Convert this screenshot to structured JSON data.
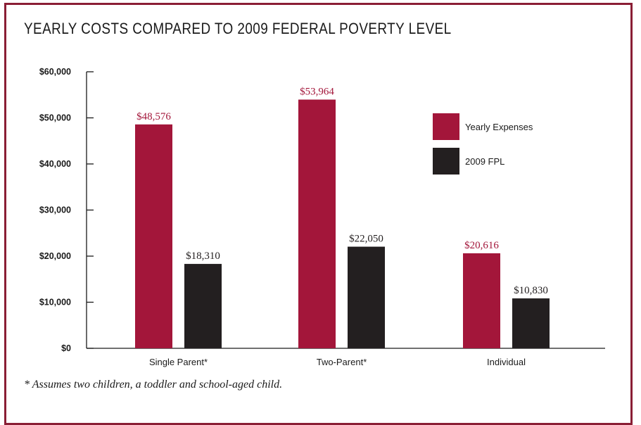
{
  "chart_data": {
    "type": "bar",
    "title": "YEARLY COSTS COMPARED TO 2009 FEDERAL POVERTY LEVEL",
    "categories": [
      "Single Parent*",
      "Two-Parent*",
      "Individual"
    ],
    "series": [
      {
        "name": "Yearly Expenses",
        "color": "#a3163a",
        "values": [
          48576,
          53964,
          20616
        ],
        "labels": [
          "$48,576",
          "$53,964",
          "$20,616"
        ]
      },
      {
        "name": "2009 FPL",
        "color": "#231f20",
        "values": [
          18310,
          22050,
          10830
        ],
        "labels": [
          "$18,310",
          "$22,050",
          "$10,830"
        ]
      }
    ],
    "y_ticks": [
      0,
      10000,
      20000,
      30000,
      40000,
      50000,
      60000
    ],
    "y_tick_labels": [
      "$0",
      "$10,000",
      "$20,000",
      "$30,000",
      "$40,000",
      "$50,000",
      "$60,000"
    ],
    "ylim": [
      0,
      60000
    ],
    "xlabel": "",
    "ylabel": "",
    "grid": false,
    "legend_position": "top-right",
    "label_colors": {
      "expenses": "#a3163a",
      "fpl": "#231f20"
    }
  },
  "footnote": "* Assumes two children, a toddler and school-aged child."
}
